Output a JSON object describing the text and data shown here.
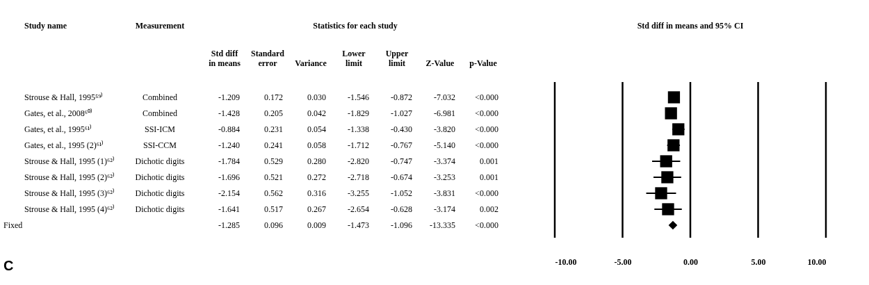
{
  "chart_data": [
    {
      "type": "other",
      "title": "Statistics for each study",
      "ylabel": "Study name",
      "categories": [
        "Measurement",
        "Std diff in means",
        "Standard error",
        "Variance",
        "Lower limit",
        "Upper limit",
        "Z-Value",
        "p-Value"
      ],
      "y_categories": [
        "Strouse & Hall, 1995⁵⁹⁾",
        "Gates, et al., 2008⁶⁰⁾",
        "Gates, et al., 1995⁶¹⁾",
        "Gates, et al., 1995 (2)⁶¹⁾",
        "Strouse & Hall, 1995 (1)⁶²⁾",
        "Strouse & Hall, 1995 (2)⁶²⁾",
        "Strouse & Hall, 1995 (3)⁶²⁾",
        "Strouse & Hall, 1995 (4)⁶²⁾",
        "Fixed"
      ],
      "cell_labels": [
        [
          "Combined",
          "-1.209",
          "0.172",
          "0.030",
          "-1.546",
          "-0.872",
          "-7.032",
          "<0.000"
        ],
        [
          "Combined",
          "-1.428",
          "0.205",
          "0.042",
          "-1.829",
          "-1.027",
          "-6.981",
          "<0.000"
        ],
        [
          "SSI-ICM",
          "-0.884",
          "0.231",
          "0.054",
          "-1.338",
          "-0.430",
          "-3.820",
          "<0.000"
        ],
        [
          "SSI-CCM",
          "-1.240",
          "0.241",
          "0.058",
          "-1.712",
          "-0.767",
          "-5.140",
          "<0.000"
        ],
        [
          "Dichotic digits",
          "-1.784",
          "0.529",
          "0.280",
          "-2.820",
          "-0.747",
          "-3.374",
          "0.001"
        ],
        [
          "Dichotic digits",
          "-1.696",
          "0.521",
          "0.272",
          "-2.718",
          "-0.674",
          "-3.253",
          "0.001"
        ],
        [
          "Dichotic digits",
          "-2.154",
          "0.562",
          "0.316",
          "-3.255",
          "-1.052",
          "-3.831",
          "<0.000"
        ],
        [
          "Dichotic digits",
          "-1.641",
          "0.517",
          "0.267",
          "-2.654",
          "-0.628",
          "-3.174",
          "0.002"
        ],
        [
          null,
          "-1.285",
          "0.096",
          "0.009",
          "-1.473",
          "-1.096",
          "-13.335",
          "<0.000"
        ]
      ],
      "annotations": [
        "C"
      ]
    },
    {
      "type": "scatter",
      "title": "Std diff in means and 95% CI",
      "orientation": "horizontal",
      "categories": [
        null,
        null,
        null,
        null,
        null,
        null,
        null,
        null,
        null
      ],
      "series": [
        {
          "marker": "square",
          "color": "#000000",
          "values": [
            -1.209,
            -1.428,
            -0.884,
            -1.24,
            -1.784,
            -1.696,
            -2.154,
            -1.641,
            null
          ],
          "errors": [
            [
              -1.546,
              -0.872
            ],
            [
              -1.829,
              -1.027
            ],
            [
              -1.338,
              -0.43
            ],
            [
              -1.712,
              -0.767
            ],
            [
              -2.82,
              -0.747
            ],
            [
              -2.718,
              -0.674
            ],
            [
              -3.255,
              -1.052
            ],
            [
              -2.654,
              -0.628
            ],
            null
          ]
        },
        {
          "marker": "diamond",
          "color": "#000000",
          "values": [
            null,
            null,
            null,
            null,
            null,
            null,
            null,
            null,
            -1.285
          ],
          "errors": [
            null,
            null,
            null,
            null,
            null,
            null,
            null,
            null,
            [
              -1.473,
              -1.096
            ]
          ]
        }
      ],
      "xlim": [
        -10,
        10
      ],
      "xticks": [
        {
          "value": -10,
          "label": "-10.00"
        },
        {
          "value": -5,
          "label": "-5.00"
        },
        {
          "value": 0,
          "label": "0.00"
        },
        {
          "value": 5,
          "label": "5.00"
        },
        {
          "value": 10,
          "label": "10.00"
        }
      ],
      "grid": "x"
    }
  ]
}
